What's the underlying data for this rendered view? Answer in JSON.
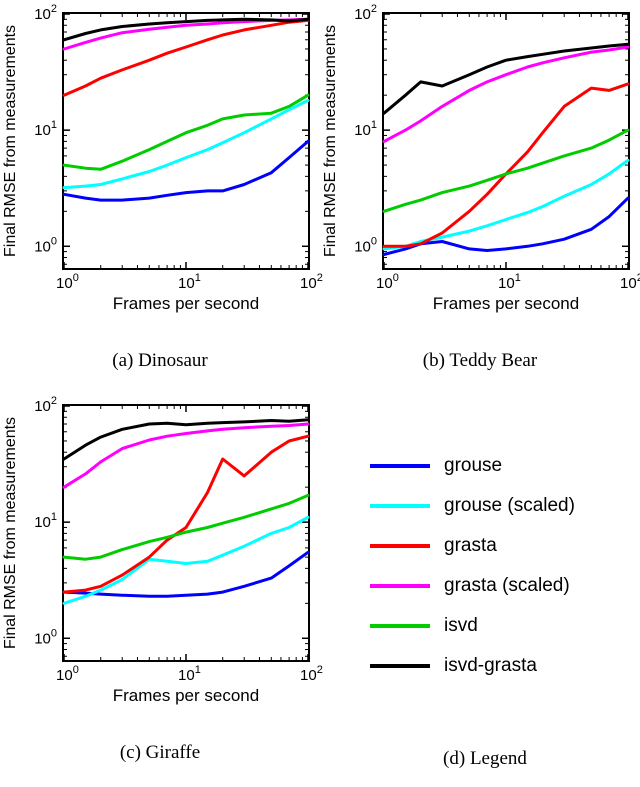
{
  "figure": {
    "legend": {
      "caption": "(d) Legend",
      "entries": [
        {
          "label": "grouse",
          "color": "#0000ff"
        },
        {
          "label": "grouse (scaled)",
          "color": "#00ffff"
        },
        {
          "label": "grasta",
          "color": "#ff0000"
        },
        {
          "label": "grasta (scaled)",
          "color": "#ff00ff"
        },
        {
          "label": "isvd",
          "color": "#00cc00"
        },
        {
          "label": "isvd-grasta",
          "color": "#000000"
        }
      ]
    }
  },
  "chart_data": [
    {
      "type": "line",
      "title": "(a) Dinosaur",
      "xlabel": "Frames per second",
      "ylabel": "Final RMSE from measurements",
      "xscale": "log",
      "yscale": "log",
      "xlim": [
        1,
        100
      ],
      "ylim": [
        0.65,
        100
      ],
      "xticks": [
        1,
        10,
        100
      ],
      "yticks": [
        1,
        10,
        100
      ],
      "x": [
        1,
        1.5,
        2,
        3,
        5,
        7,
        10,
        15,
        20,
        30,
        50,
        70,
        100
      ],
      "series": [
        {
          "name": "grouse",
          "color": "#0000ff",
          "values": [
            2.8,
            2.6,
            2.5,
            2.5,
            2.6,
            2.75,
            2.9,
            3.0,
            3.0,
            3.4,
            4.3,
            5.8,
            8
          ]
        },
        {
          "name": "grouse (scaled)",
          "color": "#00ffff",
          "values": [
            3.2,
            3.3,
            3.4,
            3.8,
            4.4,
            5.0,
            5.8,
            6.8,
            7.8,
            9.5,
            12.5,
            15,
            18
          ]
        },
        {
          "name": "grasta",
          "color": "#ff0000",
          "values": [
            20,
            24,
            28,
            33,
            40,
            46,
            52,
            60,
            66,
            73,
            80,
            85,
            88
          ]
        },
        {
          "name": "grasta (scaled)",
          "color": "#ff00ff",
          "values": [
            50,
            57,
            62,
            69,
            74,
            77,
            80,
            82,
            84,
            86,
            88,
            89,
            90
          ]
        },
        {
          "name": "isvd",
          "color": "#00cc00",
          "values": [
            5,
            4.7,
            4.6,
            5.4,
            6.8,
            8,
            9.5,
            11,
            12.5,
            13.5,
            14,
            16,
            20
          ]
        },
        {
          "name": "isvd-grasta",
          "color": "#000000",
          "values": [
            60,
            68,
            73,
            78,
            82,
            84,
            86,
            88,
            89,
            90,
            89,
            87,
            90
          ]
        }
      ]
    },
    {
      "type": "line",
      "title": "(b) Teddy Bear",
      "xlabel": "Frames per second",
      "ylabel": "Final RMSE from measurements",
      "xscale": "log",
      "yscale": "log",
      "xlim": [
        1,
        100
      ],
      "ylim": [
        0.65,
        100
      ],
      "xticks": [
        1,
        10,
        100
      ],
      "yticks": [
        1,
        10,
        100
      ],
      "x": [
        1,
        1.5,
        2,
        3,
        5,
        7,
        10,
        15,
        20,
        30,
        50,
        70,
        100
      ],
      "series": [
        {
          "name": "grouse",
          "color": "#0000ff",
          "values": [
            0.85,
            0.95,
            1.05,
            1.1,
            0.95,
            0.92,
            0.95,
            1.0,
            1.05,
            1.15,
            1.4,
            1.8,
            2.6
          ]
        },
        {
          "name": "grouse (scaled)",
          "color": "#00ffff",
          "values": [
            0.95,
            1.0,
            1.1,
            1.2,
            1.35,
            1.5,
            1.7,
            1.95,
            2.2,
            2.7,
            3.4,
            4.2,
            5.5
          ]
        },
        {
          "name": "grasta",
          "color": "#ff0000",
          "values": [
            1.0,
            1.0,
            1.05,
            1.3,
            2.0,
            2.8,
            4.2,
            6.5,
            9.5,
            16,
            23,
            22,
            25
          ]
        },
        {
          "name": "grasta (scaled)",
          "color": "#ff00ff",
          "values": [
            8,
            10,
            12,
            16,
            22,
            26,
            30,
            35,
            38,
            42,
            47,
            49,
            52
          ]
        },
        {
          "name": "isvd",
          "color": "#00cc00",
          "values": [
            2.0,
            2.3,
            2.5,
            2.9,
            3.3,
            3.7,
            4.2,
            4.7,
            5.2,
            6.0,
            7.0,
            8.2,
            10
          ]
        },
        {
          "name": "isvd-grasta",
          "color": "#000000",
          "values": [
            14,
            20,
            26,
            24,
            30,
            35,
            40,
            43,
            45,
            48,
            51,
            53,
            55
          ]
        }
      ]
    },
    {
      "type": "line",
      "title": "(c) Giraffe",
      "xlabel": "Frames per second",
      "ylabel": "Final RMSE from measurements",
      "xscale": "log",
      "yscale": "log",
      "xlim": [
        1,
        100
      ],
      "ylim": [
        0.65,
        100
      ],
      "xticks": [
        1,
        10,
        100
      ],
      "yticks": [
        1,
        10,
        100
      ],
      "x": [
        1,
        1.5,
        2,
        3,
        5,
        7,
        10,
        15,
        20,
        30,
        50,
        70,
        100
      ],
      "series": [
        {
          "name": "grouse",
          "color": "#0000ff",
          "values": [
            2.5,
            2.45,
            2.4,
            2.35,
            2.3,
            2.3,
            2.35,
            2.4,
            2.5,
            2.8,
            3.3,
            4.2,
            5.5
          ]
        },
        {
          "name": "grouse (scaled)",
          "color": "#00ffff",
          "values": [
            2.0,
            2.3,
            2.6,
            3.2,
            4.8,
            4.6,
            4.4,
            4.6,
            5.2,
            6.2,
            8,
            9,
            11
          ]
        },
        {
          "name": "grasta",
          "color": "#ff0000",
          "values": [
            2.5,
            2.6,
            2.8,
            3.5,
            5,
            7,
            9,
            18,
            35,
            25,
            40,
            50,
            55
          ]
        },
        {
          "name": "grasta (scaled)",
          "color": "#ff00ff",
          "values": [
            20,
            26,
            33,
            43,
            51,
            55,
            58,
            61,
            63,
            65,
            67,
            68,
            70
          ]
        },
        {
          "name": "isvd",
          "color": "#00cc00",
          "values": [
            5,
            4.8,
            5.0,
            5.8,
            6.8,
            7.4,
            8.2,
            9,
            9.8,
            11,
            13,
            14.5,
            17
          ]
        },
        {
          "name": "isvd-grasta",
          "color": "#000000",
          "values": [
            35,
            46,
            54,
            63,
            70,
            71,
            69,
            71,
            72,
            73,
            75,
            74,
            76
          ]
        }
      ]
    }
  ]
}
